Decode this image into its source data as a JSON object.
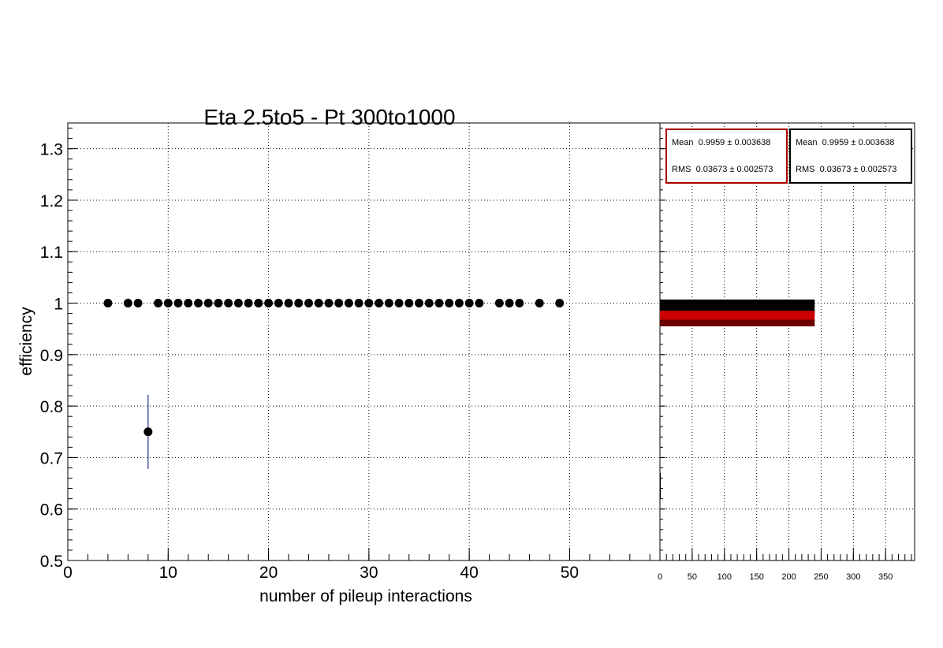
{
  "chart_data": [
    {
      "type": "scatter",
      "title": "Eta 2.5to5 - Pt 300to1000",
      "xlabel": "number of pileup interactions",
      "ylabel": "efficiency",
      "xlim": [
        0,
        59
      ],
      "ylim": [
        0.5,
        1.35
      ],
      "grid": true,
      "x_ticks": [
        "0",
        "10",
        "20",
        "30",
        "40",
        "50"
      ],
      "y_ticks": [
        "0.5",
        "0.6",
        "0.7",
        "0.8",
        "0.9",
        "1",
        "1.1",
        "1.2",
        "1.3"
      ],
      "series": [
        {
          "color": "#000000",
          "error_color": "#1f2f8f",
          "points": [
            {
              "x": 4,
              "y": 1.0
            },
            {
              "x": 6,
              "y": 1.0
            },
            {
              "x": 7,
              "y": 1.0
            },
            {
              "x": 8,
              "y": 0.75,
              "err": 0.072
            },
            {
              "x": 9,
              "y": 1.0
            },
            {
              "x": 10,
              "y": 1.0
            },
            {
              "x": 11,
              "y": 1.0
            },
            {
              "x": 12,
              "y": 1.0
            },
            {
              "x": 13,
              "y": 1.0
            },
            {
              "x": 14,
              "y": 1.0
            },
            {
              "x": 15,
              "y": 1.0
            },
            {
              "x": 16,
              "y": 1.0
            },
            {
              "x": 17,
              "y": 1.0
            },
            {
              "x": 18,
              "y": 1.0
            },
            {
              "x": 19,
              "y": 1.0
            },
            {
              "x": 20,
              "y": 1.0
            },
            {
              "x": 21,
              "y": 1.0
            },
            {
              "x": 22,
              "y": 1.0
            },
            {
              "x": 23,
              "y": 1.0
            },
            {
              "x": 24,
              "y": 1.0
            },
            {
              "x": 25,
              "y": 1.0
            },
            {
              "x": 26,
              "y": 1.0
            },
            {
              "x": 27,
              "y": 1.0
            },
            {
              "x": 28,
              "y": 1.0
            },
            {
              "x": 29,
              "y": 1.0
            },
            {
              "x": 30,
              "y": 1.0
            },
            {
              "x": 31,
              "y": 1.0
            },
            {
              "x": 32,
              "y": 1.0
            },
            {
              "x": 33,
              "y": 1.0
            },
            {
              "x": 34,
              "y": 1.0
            },
            {
              "x": 35,
              "y": 1.0
            },
            {
              "x": 36,
              "y": 1.0
            },
            {
              "x": 37,
              "y": 1.0
            },
            {
              "x": 38,
              "y": 1.0
            },
            {
              "x": 39,
              "y": 1.0
            },
            {
              "x": 40,
              "y": 1.0
            },
            {
              "x": 41,
              "y": 1.0
            },
            {
              "x": 43,
              "y": 1.0
            },
            {
              "x": 44,
              "y": 1.0
            },
            {
              "x": 45,
              "y": 1.0
            },
            {
              "x": 47,
              "y": 1.0
            },
            {
              "x": 49,
              "y": 1.0
            }
          ]
        }
      ]
    },
    {
      "type": "bar",
      "orientation": "horizontal",
      "xlim": [
        0,
        395
      ],
      "ylim": [
        0.5,
        1.35
      ],
      "grid": true,
      "x_ticks": [
        "0",
        "50",
        "100",
        "150",
        "200",
        "250",
        "300",
        "350"
      ],
      "bars": [
        {
          "y0": 0.985,
          "y1": 1.007,
          "value": 240,
          "color": "#000000"
        },
        {
          "y0": 0.975,
          "y1": 0.985,
          "value": 240,
          "color": "#000000"
        },
        {
          "y0": 0.965,
          "y1": 0.985,
          "value": 240,
          "color": "#cc0000"
        },
        {
          "y0": 0.955,
          "y1": 0.968,
          "value": 240,
          "color": "#6b0000"
        },
        {
          "y0": 0.62,
          "y1": 0.67,
          "value": 1,
          "color": "#000000"
        }
      ],
      "stats": [
        {
          "mean_label": "Mean",
          "mean": "0.9959 ± 0.003638",
          "rms_label": "RMS",
          "rms": "0.03673 ± 0.002573",
          "border_color": "#aa0000"
        },
        {
          "mean_label": "Mean",
          "mean": "0.9959 ± 0.003638",
          "rms_label": "RMS",
          "rms": "0.03673 ± 0.002573",
          "border_color": "#000000"
        }
      ]
    }
  ]
}
